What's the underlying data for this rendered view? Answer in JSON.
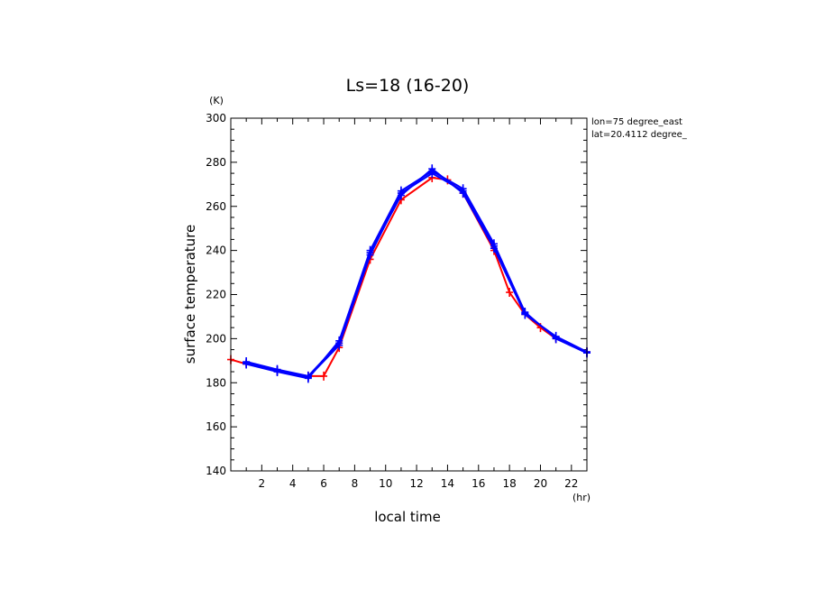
{
  "chart_data": {
    "type": "line",
    "title": "Ls=18 (16-20)",
    "xlabel": "local time",
    "ylabel": "surface temperature",
    "x_unit": "(hr)",
    "y_unit": "(K)",
    "xlim": [
      0,
      23
    ],
    "ylim": [
      140,
      300
    ],
    "x_ticks": [
      2,
      4,
      6,
      8,
      10,
      12,
      14,
      16,
      18,
      20,
      22
    ],
    "y_ticks": [
      140,
      160,
      180,
      200,
      220,
      240,
      260,
      280,
      300
    ],
    "grid": false,
    "annotations": [
      "lon=75 degree_east",
      "lat=20.4112 degree_"
    ],
    "series": [
      {
        "color": "#ff0000",
        "x": [
          0,
          1,
          3,
          5,
          6,
          7,
          9,
          11,
          13,
          14,
          15,
          17,
          18,
          19,
          20,
          21,
          23
        ],
        "y": [
          190.5,
          188.5,
          185.5,
          183,
          183,
          196,
          236,
          263,
          273,
          272,
          266,
          240,
          221,
          211,
          205,
          200,
          194
        ]
      },
      {
        "color": "#0000ff",
        "x": [
          1,
          3,
          5,
          7,
          9,
          11,
          13,
          15,
          17,
          19,
          21,
          23
        ],
        "y": [
          189,
          185.5,
          182.5,
          197,
          238,
          266,
          275,
          267,
          242,
          211.5,
          200.5,
          193.5
        ]
      },
      {
        "color": "#0000ff",
        "x": [
          1,
          3,
          5,
          7,
          9,
          11,
          13,
          15,
          17,
          19,
          21,
          23
        ],
        "y": [
          188.5,
          185,
          182,
          199,
          240,
          267,
          276,
          268,
          243,
          212,
          200,
          193.5
        ]
      },
      {
        "color": "#0000ff",
        "x": [
          1,
          3,
          5,
          7,
          9,
          11,
          13,
          15,
          17,
          19,
          21,
          23
        ],
        "y": [
          189.5,
          186,
          183,
          198,
          239,
          265,
          277,
          266,
          241,
          211,
          201,
          194
        ]
      }
    ]
  }
}
